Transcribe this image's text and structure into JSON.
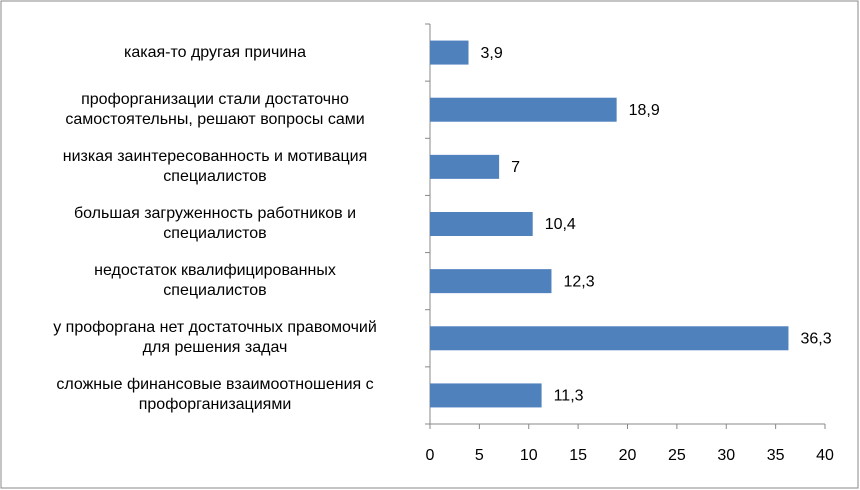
{
  "chart_data": {
    "type": "bar",
    "orientation": "horizontal",
    "categories": [
      "какая-то другая причина",
      "профорганизации стали достаточно\nсамостоятельны, решают вопросы сами",
      "низкая заинтересованность и мотивация\nспециалистов",
      "большая загруженность работников и\nспециалистов",
      "недостаток квалифицированных\nспециалистов",
      "у профоргана нет достаточных правомочий\nдля решения  задач",
      "сложные финансовые взаимоотношения с\nпрофорганизациями"
    ],
    "values": [
      3.9,
      18.9,
      7,
      10.4,
      12.3,
      36.3,
      11.3
    ],
    "value_labels": [
      "3,9",
      "18,9",
      "7",
      "10,4",
      "12,3",
      "36,3",
      "11,3"
    ],
    "color": "#4f81bd",
    "xlim": [
      0,
      40
    ],
    "xticks": [
      0,
      5,
      10,
      15,
      20,
      25,
      30,
      35,
      40
    ]
  }
}
